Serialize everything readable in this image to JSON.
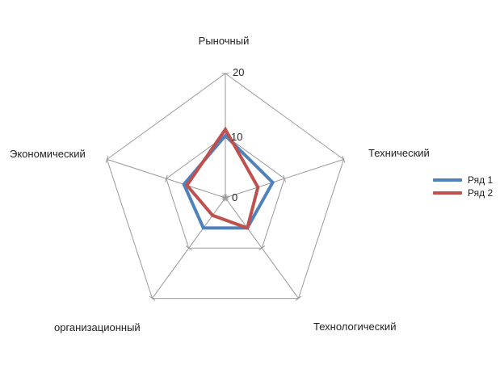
{
  "chart_data": {
    "type": "radar",
    "title": "",
    "categories": [
      "Рыночный",
      "Технический",
      "Технологический",
      "организационный",
      "Экономический"
    ],
    "series": [
      {
        "name": "Ряд 1",
        "color": "#4F81BD",
        "values": [
          10,
          8,
          6,
          6,
          7
        ]
      },
      {
        "name": "Ряд 2",
        "color": "#C0504D",
        "values": [
          11,
          5.5,
          6,
          3.5,
          6.5
        ]
      }
    ],
    "rlim": [
      0,
      20
    ],
    "ticks": [
      0,
      10,
      20
    ],
    "tick_labels": [
      "0",
      "10",
      "20"
    ],
    "grid": true,
    "grid_color": "#999999",
    "start_angle_deg": -90,
    "direction": "clockwise",
    "legend_position": "right",
    "background": "#ffffff"
  }
}
